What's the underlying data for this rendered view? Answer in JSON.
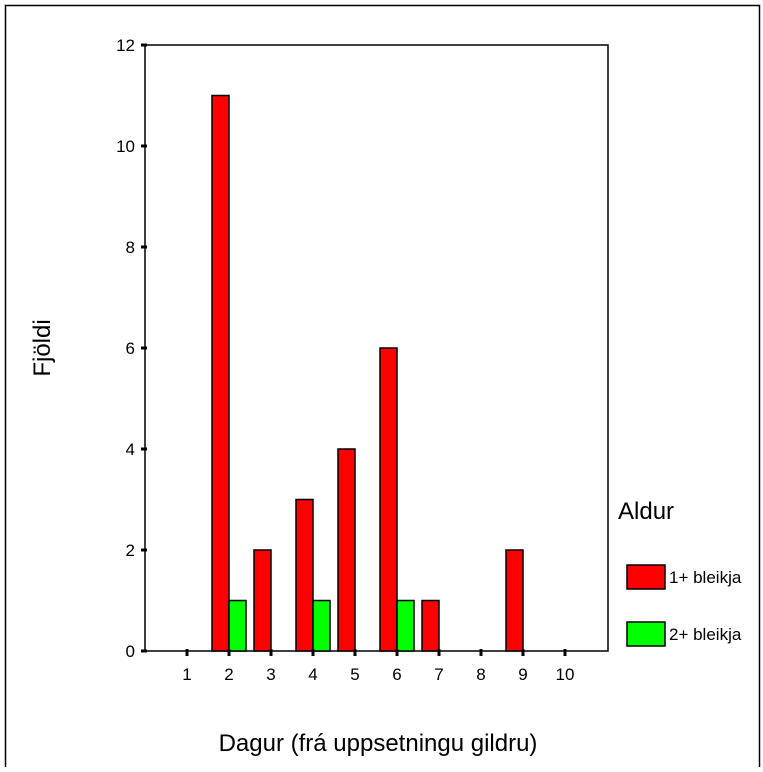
{
  "chart_data": {
    "type": "bar",
    "title": "",
    "xlabel": "Dagur (frá uppsetningu gildru)",
    "ylabel": "Fjöldi",
    "categories": [
      "1",
      "2",
      "3",
      "4",
      "5",
      "6",
      "7",
      "8",
      "9",
      "10"
    ],
    "series": [
      {
        "name": "1+ bleikja",
        "color": "#ff0000",
        "values": [
          0,
          11,
          2,
          3,
          4,
          6,
          1,
          0,
          2,
          0
        ]
      },
      {
        "name": "2+ bleikja",
        "color": "#00ff00",
        "values": [
          0,
          1,
          0,
          1,
          0,
          1,
          0,
          0,
          0,
          0
        ]
      }
    ],
    "ylim": [
      0,
      12
    ],
    "yticks": [
      "0",
      "2",
      "4",
      "6",
      "8",
      "10",
      "12"
    ],
    "legend": {
      "title": "Aldur",
      "position": "right"
    },
    "grid": false
  }
}
